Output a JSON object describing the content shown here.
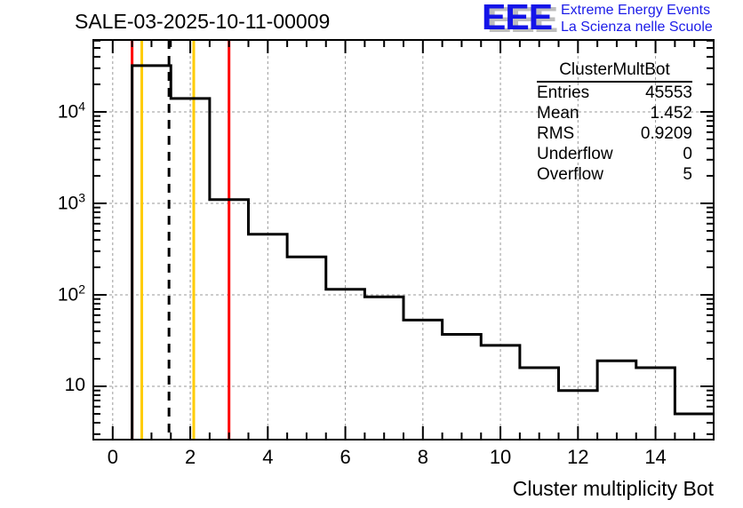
{
  "logo": {
    "acronym": "EEE",
    "line1": "Extreme Energy Events",
    "line2": "La Scienza nelle Scuole",
    "text_color": "#1c1ce8",
    "shadow_color": "#bdbdbd"
  },
  "stats": {
    "title": "ClusterMultBot",
    "rows": [
      {
        "label": "Entries",
        "value": "45553"
      },
      {
        "label": "Mean",
        "value": "1.452"
      },
      {
        "label": "RMS",
        "value": "0.9209"
      },
      {
        "label": "Underflow",
        "value": "0"
      },
      {
        "label": "Overflow",
        "value": "5"
      }
    ]
  },
  "chart_data": {
    "type": "bar",
    "subtype": "step-histogram-logy",
    "title": "SALE-03-2025-10-11-00009",
    "xlabel": "Cluster multiplicity Bot",
    "ylabel": "",
    "xlim": [
      -0.5,
      15.5
    ],
    "ylim": [
      2.615,
      61100
    ],
    "x_major_ticks": [
      0,
      2,
      4,
      6,
      8,
      10,
      12,
      14
    ],
    "x_minor_step": 0.5,
    "y_decades": [
      10,
      100,
      1000,
      10000
    ],
    "grid": true,
    "histogram": {
      "name": "ClusterMultBot",
      "bin_centers": [
        0,
        1,
        2,
        3,
        4,
        5,
        6,
        7,
        8,
        9,
        10,
        11,
        12,
        13,
        14,
        15
      ],
      "bin_width": 1,
      "values": [
        0,
        32000,
        14000,
        1100,
        460,
        260,
        115,
        95,
        53,
        37,
        28,
        16,
        9,
        19,
        16,
        5
      ]
    },
    "marker_lines": [
      {
        "x": 0.5,
        "color": "#ff0000",
        "style": "solid",
        "name": "red-cut-line-low"
      },
      {
        "x": 0.75,
        "color": "#ffcc00",
        "style": "solid",
        "name": "yellow-cut-line-low"
      },
      {
        "x": 1.452,
        "color": "#000000",
        "style": "dashed",
        "name": "mean-dashed-line"
      },
      {
        "x": 2.09,
        "color": "#ffcc00",
        "style": "solid",
        "name": "yellow-cut-line-high"
      },
      {
        "x": 3.0,
        "color": "#ff0000",
        "style": "solid",
        "name": "red-cut-line-high"
      }
    ],
    "colors": {
      "histogram": "#000000",
      "frame": "#000000",
      "grid": "#9a9a9a"
    }
  }
}
